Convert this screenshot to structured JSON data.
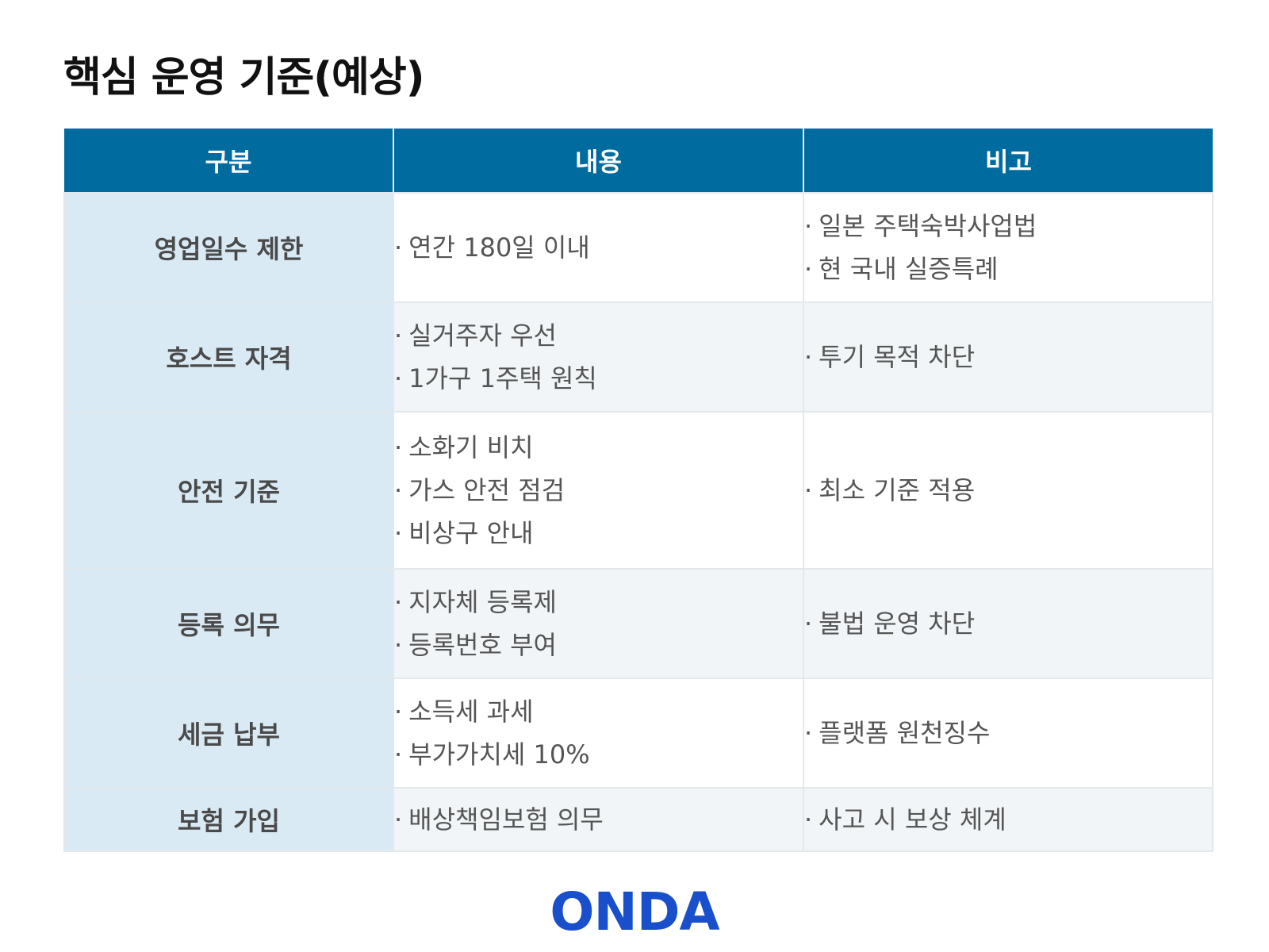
{
  "title": "핵심 운영 기준(예상)",
  "table": {
    "headers": [
      "구분",
      "내용",
      "비고"
    ],
    "rows": [
      {
        "category": "영업일수 제한",
        "content": [
          "연간 180일 이내"
        ],
        "note": [
          "일본 주택숙박사업법",
          "현 국내 실증특례"
        ]
      },
      {
        "category": "호스트 자격",
        "content": [
          "실거주자 우선",
          "1가구 1주택 원칙"
        ],
        "note": [
          "투기 목적 차단"
        ]
      },
      {
        "category": "안전 기준",
        "content": [
          "소화기 비치",
          "가스 안전 점검",
          "비상구 안내"
        ],
        "note": [
          "최소 기준 적용"
        ]
      },
      {
        "category": "등록 의무",
        "content": [
          "지자체 등록제",
          "등록번호 부여"
        ],
        "note": [
          "불법 운영 차단"
        ]
      },
      {
        "category": "세금 납부",
        "content": [
          "소득세 과세",
          "부가가치세 10%"
        ],
        "note": [
          "플랫폼 원천징수"
        ]
      },
      {
        "category": "보험 가입",
        "content": [
          "배상책임보험 의무"
        ],
        "note": [
          "사고 시 보상 체계"
        ]
      }
    ]
  },
  "logo": "ONDA",
  "colors": {
    "header_bg": "#006b9f",
    "category_bg": "#daeaf5",
    "logo": "#1a4fcb"
  }
}
